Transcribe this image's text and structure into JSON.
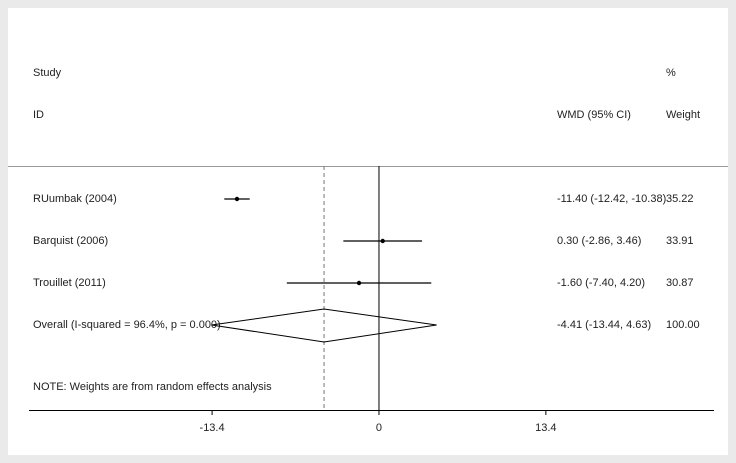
{
  "chart_data": {
    "type": "forest",
    "headers": {
      "study": "Study",
      "id": "ID",
      "effect": "WMD (95% CI)",
      "percent": "%",
      "weight": "Weight"
    },
    "studies": [
      {
        "name": "RUumbak (2004)",
        "estimate": -11.4,
        "ci_low": -12.42,
        "ci_high": -10.38,
        "ci_label": "-11.40 (-12.42, -10.38)",
        "weight": 35.22
      },
      {
        "name": "Barquist (2006)",
        "estimate": 0.3,
        "ci_low": -2.86,
        "ci_high": 3.46,
        "ci_label": "0.30 (-2.86, 3.46)",
        "weight": 33.91
      },
      {
        "name": "Trouillet (2011)",
        "estimate": -1.6,
        "ci_low": -7.4,
        "ci_high": 4.2,
        "ci_label": "-1.60 (-7.40, 4.20)",
        "weight": 30.87
      }
    ],
    "overall": {
      "name": "Overall  (I-squared = 96.4%, p = 0.000)",
      "estimate": -4.41,
      "ci_low": -13.44,
      "ci_high": 4.63,
      "ci_label": "-4.41 (-13.44, 4.63)",
      "weight": 100,
      "weight_label": "100.00"
    },
    "note": "NOTE: Weights are from random effects analysis",
    "xlim": [
      -28.1,
      26.9
    ],
    "xticks": [
      -13.4,
      0,
      13.4
    ],
    "color": "#000000"
  }
}
